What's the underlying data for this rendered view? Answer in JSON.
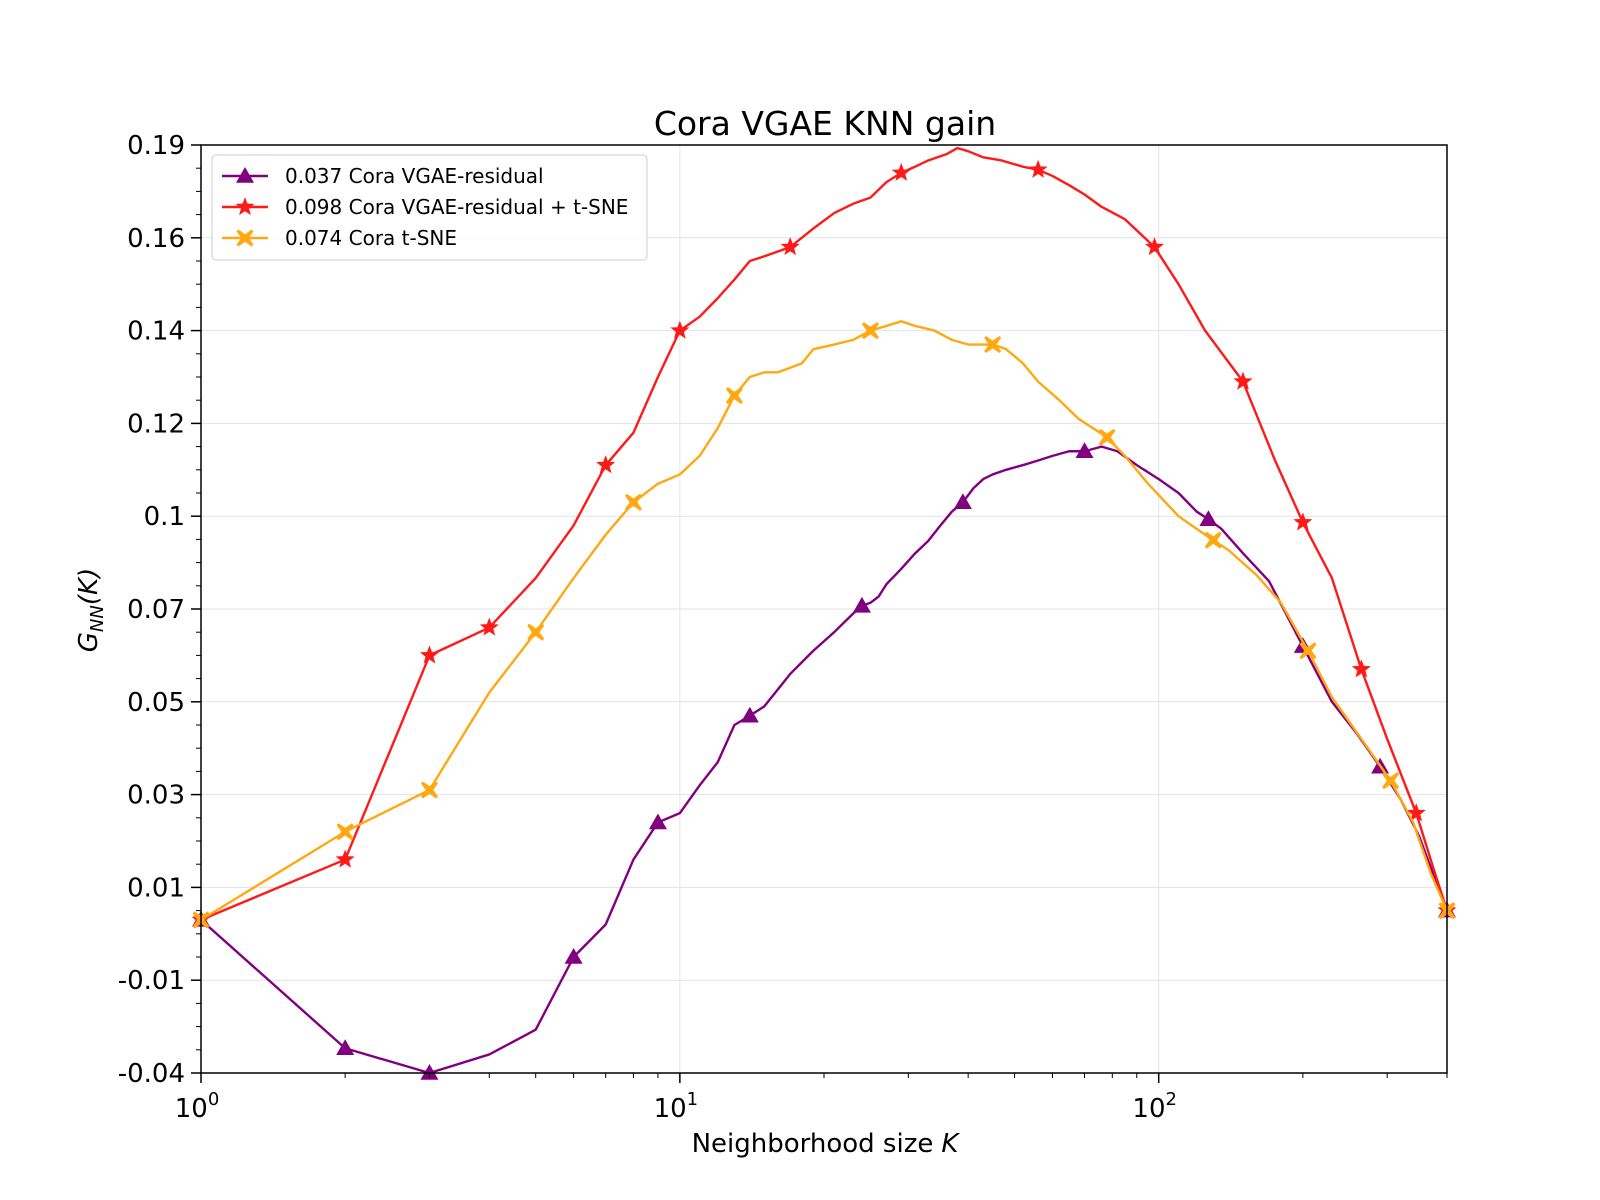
{
  "chart_data": {
    "type": "line",
    "title": "Cora VGAE KNN gain",
    "xlabel": "Neighborhood size",
    "xlabel_var": "K",
    "ylabel": "G",
    "ylabel_sub": "NN",
    "ylabel_arg": "(K)",
    "xscale": "log",
    "xlim": [
      1,
      400
    ],
    "ylim": [
      -0.04,
      0.19
    ],
    "xticks": [
      {
        "value": 1,
        "base": "10",
        "exp": "0"
      },
      {
        "value": 10,
        "base": "10",
        "exp": "1"
      },
      {
        "value": 100,
        "base": "10",
        "exp": "2"
      }
    ],
    "yticks": [
      {
        "value": 0.19,
        "label": "0.19"
      },
      {
        "value": 0.16,
        "label": "0.16"
      },
      {
        "value": 0.14,
        "label": "0.14"
      },
      {
        "value": 0.12,
        "label": "0.12"
      },
      {
        "value": 0.1,
        "label": "0.1"
      },
      {
        "value": 0.07,
        "label": "0.07"
      },
      {
        "value": 0.05,
        "label": "0.05"
      },
      {
        "value": 0.03,
        "label": "0.03"
      },
      {
        "value": 0.01,
        "label": "0.01"
      },
      {
        "value": -0.01,
        "label": "-0.01"
      },
      {
        "value": -0.04,
        "label": "-0.04"
      }
    ],
    "grid": true,
    "legend_position": "top-left",
    "series": [
      {
        "name": "0.037 Cora VGAE-residual",
        "color": "#800080",
        "marker": "triangle",
        "points": [
          [
            1,
            0.003
          ],
          [
            2,
            -0.032
          ],
          [
            3,
            -0.04
          ],
          [
            4,
            -0.034
          ],
          [
            5,
            -0.026
          ],
          [
            6,
            -0.005
          ],
          [
            7,
            0.002
          ],
          [
            8,
            0.016
          ],
          [
            9,
            0.024
          ],
          [
            10,
            0.026
          ],
          [
            11,
            0.032
          ],
          [
            12,
            0.037
          ],
          [
            13,
            0.045
          ],
          [
            14,
            0.047
          ],
          [
            15,
            0.049
          ],
          [
            17,
            0.056
          ],
          [
            19,
            0.061
          ],
          [
            21,
            0.065
          ],
          [
            23,
            0.069
          ],
          [
            24,
            0.071
          ],
          [
            25,
            0.072
          ],
          [
            26,
            0.074
          ],
          [
            27,
            0.078
          ],
          [
            29,
            0.083
          ],
          [
            31,
            0.088
          ],
          [
            33,
            0.092
          ],
          [
            35,
            0.097
          ],
          [
            37,
            0.101
          ],
          [
            39,
            0.103
          ],
          [
            41,
            0.106
          ],
          [
            43,
            0.108
          ],
          [
            45,
            0.109
          ],
          [
            48,
            0.11
          ],
          [
            52,
            0.111
          ],
          [
            56,
            0.112
          ],
          [
            60,
            0.113
          ],
          [
            65,
            0.114
          ],
          [
            70,
            0.114
          ],
          [
            76,
            0.115
          ],
          [
            82,
            0.114
          ],
          [
            90,
            0.111
          ],
          [
            100,
            0.108
          ],
          [
            110,
            0.105
          ],
          [
            120,
            0.101
          ],
          [
            127,
            0.099
          ],
          [
            135,
            0.096
          ],
          [
            150,
            0.088
          ],
          [
            170,
            0.079
          ],
          [
            200,
            0.062
          ],
          [
            230,
            0.05
          ],
          [
            260,
            0.043
          ],
          [
            290,
            0.036
          ],
          [
            320,
            0.029
          ],
          [
            350,
            0.021
          ],
          [
            380,
            0.011
          ],
          [
            400,
            0.005
          ]
        ]
      },
      {
        "name": "0.098 Cora VGAE-residual + t-SNE",
        "color": "#ff1a1a",
        "marker": "star",
        "points": [
          [
            1,
            0.003
          ],
          [
            2,
            0.016
          ],
          [
            3,
            0.06
          ],
          [
            4,
            0.066
          ],
          [
            5,
            0.08
          ],
          [
            6,
            0.097
          ],
          [
            7,
            0.111
          ],
          [
            8,
            0.118
          ],
          [
            9,
            0.13
          ],
          [
            10,
            0.14
          ],
          [
            11,
            0.143
          ],
          [
            12,
            0.147
          ],
          [
            13,
            0.151
          ],
          [
            14,
            0.155
          ],
          [
            15,
            0.156
          ],
          [
            17,
            0.158
          ],
          [
            19,
            0.163
          ],
          [
            21,
            0.168
          ],
          [
            23,
            0.171
          ],
          [
            25,
            0.173
          ],
          [
            27,
            0.178
          ],
          [
            29,
            0.181
          ],
          [
            31,
            0.183
          ],
          [
            33,
            0.185
          ],
          [
            36,
            0.187
          ],
          [
            38,
            0.189
          ],
          [
            40,
            0.188
          ],
          [
            43,
            0.186
          ],
          [
            47,
            0.185
          ],
          [
            52,
            0.183
          ],
          [
            56,
            0.182
          ],
          [
            60,
            0.18
          ],
          [
            65,
            0.177
          ],
          [
            70,
            0.174
          ],
          [
            76,
            0.17
          ],
          [
            85,
            0.166
          ],
          [
            98,
            0.158
          ],
          [
            110,
            0.15
          ],
          [
            125,
            0.14
          ],
          [
            150,
            0.129
          ],
          [
            175,
            0.112
          ],
          [
            200,
            0.098
          ],
          [
            230,
            0.08
          ],
          [
            265,
            0.057
          ],
          [
            300,
            0.042
          ],
          [
            345,
            0.026
          ],
          [
            375,
            0.014
          ],
          [
            400,
            0.005
          ]
        ]
      },
      {
        "name": "0.074 Cora t-SNE",
        "color": "#ffa812",
        "marker": "x",
        "points": [
          [
            1,
            0.003
          ],
          [
            2,
            0.022
          ],
          [
            3,
            0.031
          ],
          [
            4,
            0.052
          ],
          [
            5,
            0.065
          ],
          [
            6,
            0.08
          ],
          [
            7,
            0.094
          ],
          [
            8,
            0.103
          ],
          [
            9,
            0.107
          ],
          [
            10,
            0.109
          ],
          [
            11,
            0.113
          ],
          [
            12,
            0.119
          ],
          [
            13,
            0.126
          ],
          [
            14,
            0.13
          ],
          [
            15,
            0.131
          ],
          [
            16,
            0.131
          ],
          [
            17,
            0.132
          ],
          [
            18,
            0.133
          ],
          [
            19,
            0.136
          ],
          [
            21,
            0.137
          ],
          [
            23,
            0.138
          ],
          [
            25,
            0.14
          ],
          [
            27,
            0.141
          ],
          [
            29,
            0.142
          ],
          [
            31,
            0.141
          ],
          [
            34,
            0.14
          ],
          [
            37,
            0.138
          ],
          [
            40,
            0.137
          ],
          [
            45,
            0.137
          ],
          [
            48,
            0.136
          ],
          [
            52,
            0.133
          ],
          [
            56,
            0.129
          ],
          [
            62,
            0.125
          ],
          [
            68,
            0.121
          ],
          [
            78,
            0.117
          ],
          [
            85,
            0.113
          ],
          [
            95,
            0.107
          ],
          [
            110,
            0.1
          ],
          [
            125,
            0.094
          ],
          [
            140,
            0.089
          ],
          [
            160,
            0.081
          ],
          [
            180,
            0.072
          ],
          [
            205,
            0.061
          ],
          [
            230,
            0.051
          ],
          [
            265,
            0.042
          ],
          [
            305,
            0.033
          ],
          [
            340,
            0.024
          ],
          [
            370,
            0.013
          ],
          [
            400,
            0.005
          ]
        ]
      }
    ]
  }
}
